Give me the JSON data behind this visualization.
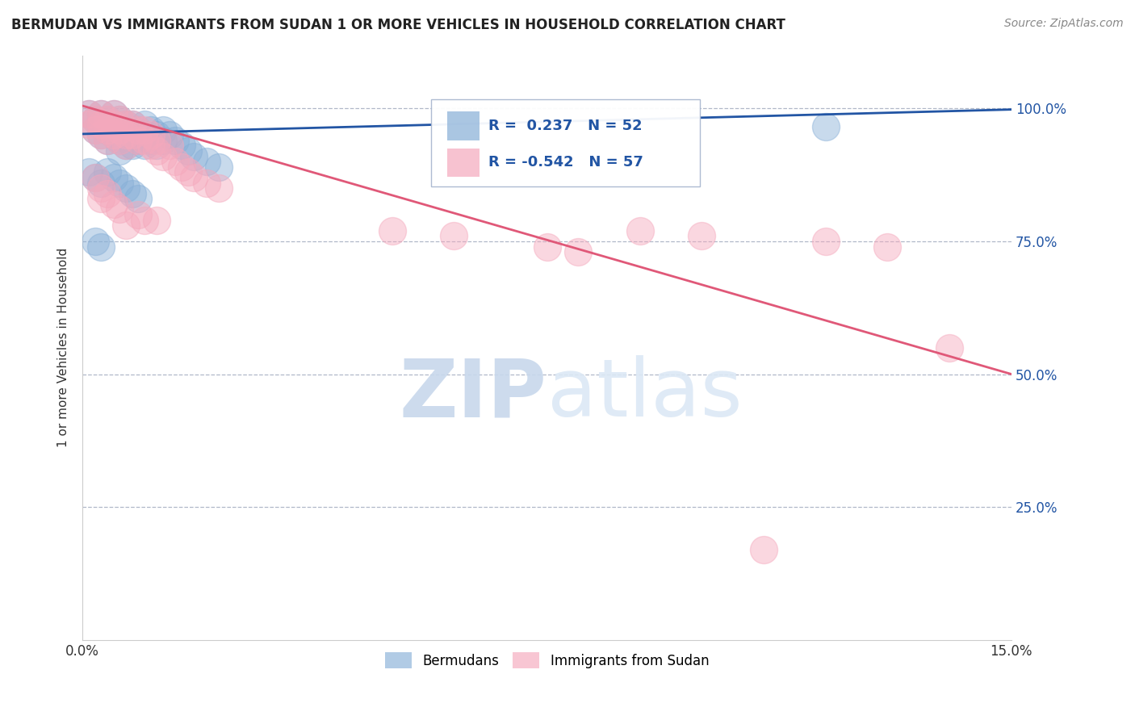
{
  "title": "BERMUDAN VS IMMIGRANTS FROM SUDAN 1 OR MORE VEHICLES IN HOUSEHOLD CORRELATION CHART",
  "source": "Source: ZipAtlas.com",
  "ylabel": "1 or more Vehicles in Household",
  "xlabel": "",
  "xlim": [
    0.0,
    0.15
  ],
  "ylim": [
    0.0,
    1.1
  ],
  "x_ticks": [
    0.0,
    0.05,
    0.1,
    0.15
  ],
  "x_tick_labels": [
    "0.0%",
    "",
    "",
    "15.0%"
  ],
  "y_ticks": [
    0.25,
    0.5,
    0.75,
    1.0
  ],
  "y_tick_labels": [
    "25.0%",
    "50.0%",
    "75.0%",
    "100.0%"
  ],
  "blue_R": 0.237,
  "blue_N": 52,
  "pink_R": -0.542,
  "pink_N": 57,
  "blue_color": "#87afd7",
  "pink_color": "#f5a8bc",
  "blue_line_color": "#2255a4",
  "pink_line_color": "#e05878",
  "legend_text_color": "#2255a4",
  "watermark_zip": "ZIP",
  "watermark_atlas": "atlas",
  "watermark_color": "#dce8f5",
  "blue_line_x0": 0.0,
  "blue_line_y0": 0.952,
  "blue_line_x1": 0.15,
  "blue_line_y1": 0.998,
  "pink_line_x0": 0.0,
  "pink_line_y0": 1.005,
  "pink_line_x1": 0.15,
  "pink_line_y1": 0.5,
  "blue_scatter_x": [
    0.001,
    0.002,
    0.002,
    0.003,
    0.003,
    0.003,
    0.004,
    0.004,
    0.004,
    0.005,
    0.005,
    0.005,
    0.006,
    0.006,
    0.006,
    0.006,
    0.007,
    0.007,
    0.007,
    0.008,
    0.008,
    0.008,
    0.009,
    0.009,
    0.01,
    0.01,
    0.01,
    0.011,
    0.011,
    0.012,
    0.012,
    0.013,
    0.013,
    0.014,
    0.015,
    0.016,
    0.017,
    0.018,
    0.02,
    0.022,
    0.001,
    0.002,
    0.003,
    0.004,
    0.005,
    0.006,
    0.007,
    0.008,
    0.009,
    0.002,
    0.003,
    0.12
  ],
  "blue_scatter_y": [
    0.99,
    0.98,
    0.96,
    0.99,
    0.97,
    0.95,
    0.98,
    0.96,
    0.94,
    0.99,
    0.97,
    0.95,
    0.98,
    0.96,
    0.94,
    0.92,
    0.97,
    0.95,
    0.93,
    0.97,
    0.95,
    0.93,
    0.96,
    0.94,
    0.97,
    0.95,
    0.93,
    0.96,
    0.94,
    0.95,
    0.93,
    0.96,
    0.94,
    0.95,
    0.94,
    0.93,
    0.92,
    0.91,
    0.9,
    0.89,
    0.88,
    0.87,
    0.86,
    0.88,
    0.87,
    0.86,
    0.85,
    0.84,
    0.83,
    0.75,
    0.74,
    0.965
  ],
  "pink_scatter_x": [
    0.001,
    0.001,
    0.002,
    0.002,
    0.003,
    0.003,
    0.003,
    0.004,
    0.004,
    0.004,
    0.005,
    0.005,
    0.005,
    0.006,
    0.006,
    0.006,
    0.007,
    0.007,
    0.007,
    0.008,
    0.008,
    0.009,
    0.009,
    0.01,
    0.01,
    0.011,
    0.011,
    0.012,
    0.012,
    0.013,
    0.014,
    0.015,
    0.016,
    0.017,
    0.018,
    0.02,
    0.022,
    0.002,
    0.003,
    0.003,
    0.004,
    0.005,
    0.006,
    0.007,
    0.009,
    0.01,
    0.012,
    0.05,
    0.06,
    0.075,
    0.08,
    0.09,
    0.1,
    0.11,
    0.12,
    0.13,
    0.14
  ],
  "pink_scatter_y": [
    0.99,
    0.97,
    0.98,
    0.96,
    0.99,
    0.97,
    0.95,
    0.98,
    0.96,
    0.94,
    0.99,
    0.97,
    0.95,
    0.98,
    0.96,
    0.94,
    0.97,
    0.95,
    0.93,
    0.97,
    0.95,
    0.96,
    0.94,
    0.96,
    0.94,
    0.95,
    0.93,
    0.94,
    0.92,
    0.91,
    0.93,
    0.9,
    0.89,
    0.88,
    0.87,
    0.86,
    0.85,
    0.87,
    0.85,
    0.83,
    0.84,
    0.82,
    0.81,
    0.78,
    0.8,
    0.79,
    0.79,
    0.77,
    0.76,
    0.74,
    0.73,
    0.77,
    0.76,
    0.17,
    0.75,
    0.74,
    0.55
  ]
}
